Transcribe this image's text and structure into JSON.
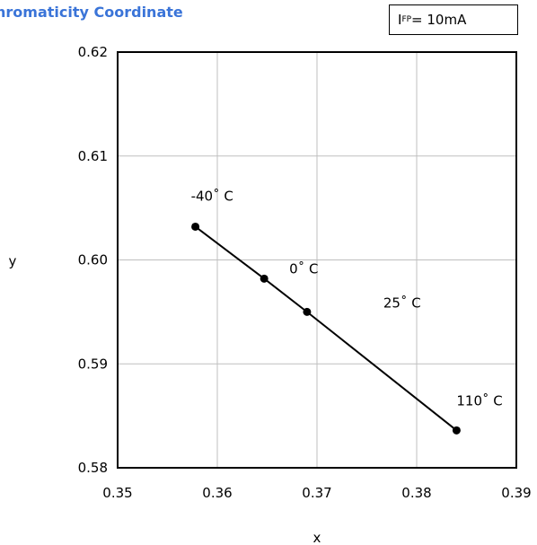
{
  "chart_data": {
    "type": "line",
    "title": "hromaticity Coordinate",
    "condition": {
      "symbol": "I",
      "subscript": "FP",
      "value": "= 10mA"
    },
    "xlabel": "x",
    "ylabel": "y",
    "xlim": [
      0.35,
      0.39
    ],
    "ylim": [
      0.58,
      0.62
    ],
    "xticks": [
      0.35,
      0.36,
      0.37,
      0.38,
      0.39
    ],
    "yticks": [
      0.58,
      0.59,
      0.6,
      0.61,
      0.62
    ],
    "xtick_labels": [
      "0.35",
      "0.36",
      "0.37",
      "0.38",
      "0.39"
    ],
    "ytick_labels": [
      "0.58",
      "0.59",
      "0.60",
      "0.61",
      "0.62"
    ],
    "grid": true,
    "series": [
      {
        "line_color": "#000000",
        "points": [
          {
            "x": 0.3578,
            "y": 0.6032,
            "label": "-40˚ C"
          },
          {
            "x": 0.3647,
            "y": 0.5982,
            "label": "0˚ C"
          },
          {
            "x": 0.369,
            "y": 0.595,
            "label": "25˚ C"
          },
          {
            "x": 0.384,
            "y": 0.5836,
            "label": "110˚ C"
          }
        ]
      }
    ]
  }
}
